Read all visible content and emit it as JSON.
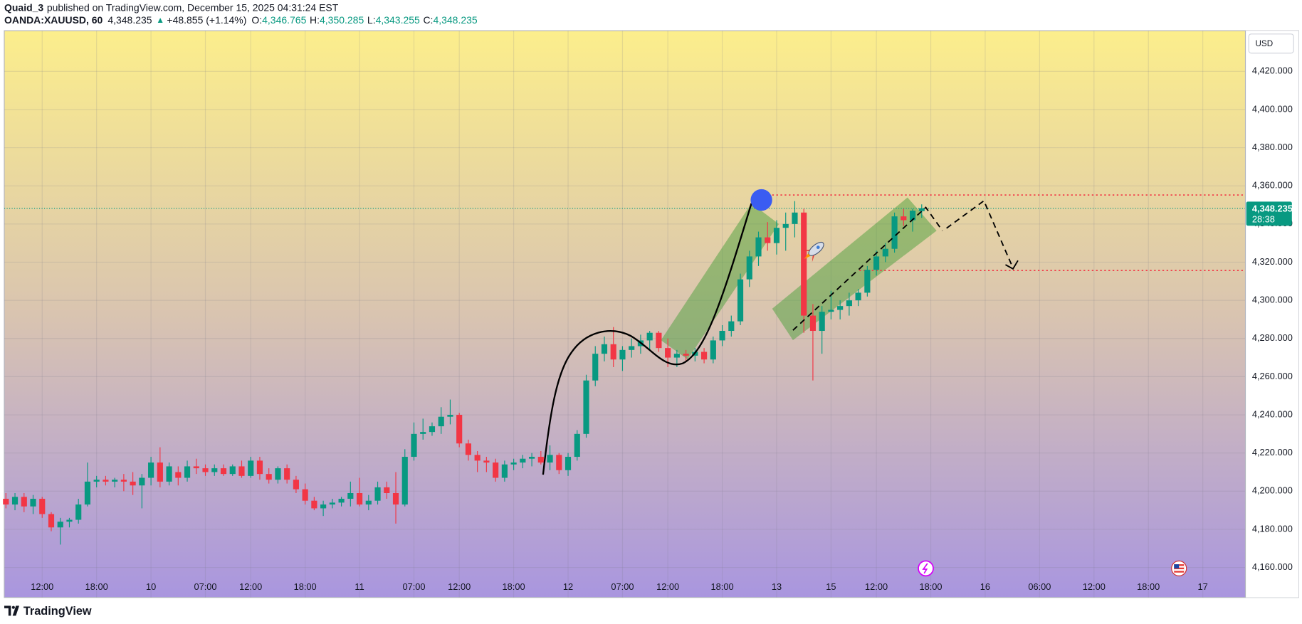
{
  "chart_data": {
    "type": "candlestick",
    "author": "Quaid_3",
    "published": "published on TradingView.com, December 15, 2025 04:31:24 EST",
    "symbol": "OANDA:XAUUSD, 60",
    "last_price": {
      "value": 4348.235,
      "label": "4,348.235"
    },
    "change": {
      "value": 48.855,
      "label": "+48.855 (+1.14%)"
    },
    "legend_values": [
      {
        "name": "O:",
        "value": 4346.765,
        "label": "4,346.765"
      },
      {
        "name": "H:",
        "value": 4350.285,
        "label": "4,350.285"
      },
      {
        "name": "L:",
        "value": 4343.255,
        "label": "4,343.255"
      },
      {
        "name": "C:",
        "value": 4348.235,
        "label": "4,348.235"
      }
    ],
    "countdown": "28:38",
    "currency": "USD",
    "brand": "TradingView",
    "up_color": "#089981",
    "down_color": "#f23645",
    "grid": true,
    "x": [
      0,
      1,
      2,
      3,
      4,
      5,
      6,
      7,
      8,
      9,
      10,
      11,
      12,
      13,
      14,
      15,
      16,
      17,
      18,
      19,
      20,
      21,
      22,
      23,
      24,
      25,
      26,
      27,
      28,
      29,
      30,
      31,
      32,
      33,
      34,
      35,
      36,
      37,
      38,
      39,
      40,
      41,
      42,
      43,
      44,
      45,
      46,
      47,
      48,
      49,
      50,
      51,
      52,
      53,
      54,
      55,
      56,
      57,
      58,
      59,
      60,
      61,
      62,
      63,
      64,
      65,
      66,
      67,
      68,
      69,
      70,
      71,
      72,
      73,
      74,
      75,
      76,
      77,
      78,
      79,
      80,
      81,
      82,
      83,
      84,
      85,
      86,
      87,
      88,
      89,
      90,
      91,
      92,
      93,
      94,
      95,
      96,
      97,
      98,
      99,
      100,
      101
    ],
    "open": [
      4196,
      4193,
      4197,
      4192,
      4196,
      4188,
      4181,
      4184,
      4185,
      4193,
      4205,
      4206,
      4205,
      4206,
      4205,
      4203,
      4207,
      4215,
      4205,
      4210,
      4207,
      4213,
      4212,
      4210,
      4212,
      4209,
      4213,
      4208,
      4216,
      4209,
      4206,
      4212,
      4206,
      4201,
      4195,
      4191,
      4193,
      4194,
      4196,
      4199,
      4193,
      4195,
      4202,
      4199,
      4193,
      4218,
      4230,
      4231,
      4234,
      4239,
      4240,
      4225,
      4219,
      4216,
      4215,
      4207,
      4214,
      4215,
      4217,
      4218,
      4215,
      4219,
      4211,
      4218,
      4230,
      4258,
      4272,
      4277,
      4269,
      4274,
      4276,
      4279,
      4283,
      4275,
      4270,
      4272,
      4271,
      4273,
      4269,
      4279,
      4284,
      4289,
      4311,
      4323,
      4333,
      4330,
      4338,
      4340,
      4346,
      4292,
      4284,
      4294,
      4295,
      4297,
      4300,
      4304,
      4316,
      4323,
      4327,
      4344,
      4342,
      4346.765
    ],
    "high": [
      4199,
      4199,
      4199,
      4198,
      4197,
      4189,
      4186,
      4186,
      4196,
      4215,
      4208,
      4208,
      4207,
      4209,
      4210,
      4209,
      4218,
      4223,
      4215,
      4213,
      4216,
      4217,
      4214,
      4214,
      4214,
      4214,
      4216,
      4218,
      4218,
      4212,
      4213,
      4214,
      4208,
      4204,
      4197,
      4195,
      4196,
      4197,
      4205,
      4207,
      4198,
      4205,
      4205,
      4210,
      4222,
      4236,
      4238,
      4236,
      4244,
      4248,
      4241,
      4227,
      4221,
      4218,
      4217,
      4216,
      4217,
      4219,
      4220,
      4221,
      4224,
      4220,
      4220,
      4232,
      4261,
      4276,
      4281,
      4286,
      4276,
      4280,
      4282,
      4284,
      4284,
      4280,
      4274,
      4274,
      4275,
      4275,
      4281,
      4287,
      4292,
      4314,
      4326,
      4336,
      4341,
      4342,
      4346,
      4352,
      4348,
      4298,
      4297,
      4305,
      4300,
      4304,
      4306,
      4318,
      4326,
      4330,
      4346,
      4348,
      4348,
      4350.285
    ],
    "low": [
      4191,
      4190,
      4189,
      4188,
      4186,
      4179,
      4172,
      4181,
      4183,
      4192,
      4202,
      4203,
      4202,
      4200,
      4198,
      4191,
      4203,
      4202,
      4203,
      4203,
      4205,
      4209,
      4208,
      4208,
      4208,
      4208,
      4207,
      4207,
      4206,
      4204,
      4204,
      4204,
      4199,
      4193,
      4190,
      4187,
      4191,
      4192,
      4192,
      4192,
      4190,
      4193,
      4196,
      4183,
      4192,
      4216,
      4227,
      4229,
      4230,
      4235,
      4223,
      4216,
      4210,
      4210,
      4205,
      4205,
      4211,
      4212,
      4213,
      4214,
      4211,
      4209,
      4208,
      4216,
      4228,
      4255,
      4268,
      4265,
      4263,
      4270,
      4272,
      4274,
      4273,
      4265,
      4265,
      4268,
      4268,
      4267,
      4267,
      4276,
      4281,
      4287,
      4307,
      4318,
      4326,
      4324,
      4326,
      4333,
      4283,
      4258,
      4272,
      4290,
      4290,
      4292,
      4297,
      4302,
      4313,
      4320,
      4325,
      4339,
      4336,
      4343.255
    ],
    "close": [
      4193,
      4197,
      4192,
      4196,
      4188,
      4181,
      4184,
      4185,
      4193,
      4205,
      4206,
      4205,
      4206,
      4205,
      4203,
      4207,
      4215,
      4205,
      4213,
      4207,
      4213,
      4212,
      4210,
      4212,
      4209,
      4213,
      4208,
      4216,
      4209,
      4206,
      4212,
      4206,
      4201,
      4195,
      4191,
      4193,
      4194,
      4196,
      4199,
      4193,
      4195,
      4202,
      4199,
      4193,
      4218,
      4230,
      4231,
      4234,
      4239,
      4240,
      4225,
      4219,
      4216,
      4215,
      4207,
      4214,
      4215,
      4217,
      4218,
      4215,
      4219,
      4211,
      4218,
      4230,
      4258,
      4272,
      4277,
      4269,
      4274,
      4276,
      4279,
      4283,
      4275,
      4270,
      4272,
      4271,
      4273,
      4269,
      4279,
      4284,
      4289,
      4311,
      4323,
      4333,
      4330,
      4338,
      4340,
      4346,
      4292,
      4284,
      4294,
      4295,
      4297,
      4300,
      4304,
      4316,
      4323,
      4327,
      4344,
      4342,
      4347,
      4348.235
    ],
    "xlim": [
      -0.18,
      136.7
    ],
    "xticks": [
      {
        "value": 4,
        "label": "12:00"
      },
      {
        "value": 10,
        "label": "18:00"
      },
      {
        "value": 16,
        "label": "10"
      },
      {
        "value": 22,
        "label": "07:00"
      },
      {
        "value": 27,
        "label": "12:00"
      },
      {
        "value": 33,
        "label": "18:00"
      },
      {
        "value": 39,
        "label": "11"
      },
      {
        "value": 45,
        "label": "07:00"
      },
      {
        "value": 50,
        "label": "12:00"
      },
      {
        "value": 56,
        "label": "18:00"
      },
      {
        "value": 62,
        "label": "12"
      },
      {
        "value": 68,
        "label": "07:00"
      },
      {
        "value": 73,
        "label": "12:00"
      },
      {
        "value": 79,
        "label": "18:00"
      },
      {
        "value": 85,
        "label": "13"
      },
      {
        "value": 91,
        "label": "15"
      },
      {
        "value": 96,
        "label": "12:00"
      },
      {
        "value": 102,
        "label": "18:00"
      },
      {
        "value": 108,
        "label": "16"
      },
      {
        "value": 114,
        "label": "06:00"
      },
      {
        "value": 120,
        "label": "12:00"
      },
      {
        "value": 126,
        "label": "18:00"
      },
      {
        "value": 132,
        "label": "17"
      }
    ],
    "ylim": [
      4144.3,
      4441.3
    ],
    "yticks": [
      {
        "value": 4160,
        "label": "4,160.000"
      },
      {
        "value": 4180,
        "label": "4,180.000"
      },
      {
        "value": 4200,
        "label": "4,200.000"
      },
      {
        "value": 4220,
        "label": "4,220.000"
      },
      {
        "value": 4240,
        "label": "4,240.000"
      },
      {
        "value": 4260,
        "label": "4,260.000"
      },
      {
        "value": 4280,
        "label": "4,280.000"
      },
      {
        "value": 4300,
        "label": "4,300.000"
      },
      {
        "value": 4320,
        "label": "4,320.000"
      },
      {
        "value": 4340,
        "label": "4,340.000"
      },
      {
        "value": 4360,
        "label": "4,360.000"
      },
      {
        "value": 4380,
        "label": "4,380.000"
      },
      {
        "value": 4400,
        "label": "4,400.000"
      },
      {
        "value": 4420,
        "label": "4,420.000"
      }
    ]
  }
}
